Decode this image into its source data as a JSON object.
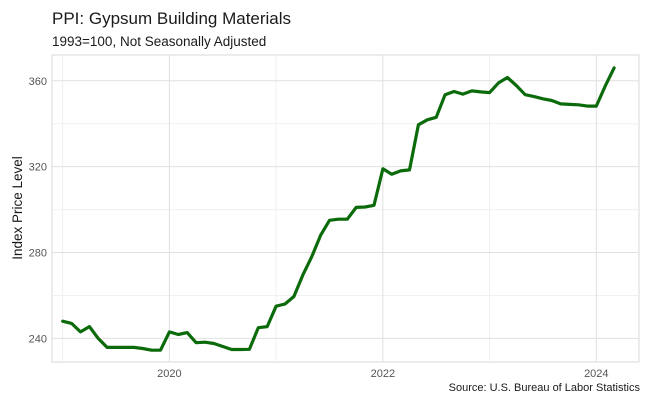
{
  "chart_data": {
    "type": "line",
    "title": "PPI: Gypsum Building Materials",
    "subtitle": "1993=100, Not Seasonally Adjusted",
    "caption": "Source: U.S. Bureau of Labor Statistics",
    "xlabel": "",
    "ylabel": "Index Price Level",
    "x_start": "2019-01",
    "x_frequency": "monthly",
    "xlim": [
      2018.9,
      2024.4
    ],
    "ylim": [
      229,
      372
    ],
    "x_ticks": [
      2020,
      2022,
      2024
    ],
    "x_tick_labels": [
      "2020",
      "2022",
      "2024"
    ],
    "y_ticks": [
      240,
      280,
      320,
      360
    ],
    "y_tick_labels": [
      "240",
      "280",
      "320",
      "360"
    ],
    "grid": true,
    "line_color": "#0b6b0b",
    "series": [
      {
        "name": "PPI Gypsum Building Materials",
        "values": [
          248,
          247,
          243,
          245.5,
          240,
          235.8,
          235.8,
          235.8,
          235.8,
          235.3,
          234.5,
          234.5,
          243,
          241.8,
          242.7,
          238,
          238.2,
          237.6,
          236.2,
          234.8,
          234.8,
          234.9,
          245,
          245.5,
          255,
          256,
          259.5,
          269.5,
          278,
          288,
          295,
          295.5,
          295.5,
          301,
          301.2,
          302,
          319,
          316.5,
          318,
          318.5,
          339.5,
          341.8,
          343,
          353.5,
          355,
          353.8,
          355.3,
          354.8,
          354.5,
          359,
          361.5,
          357.8,
          353.5,
          352.6,
          351.6,
          350.8,
          349.2,
          349,
          348.8,
          348.2,
          348.2,
          357.5,
          366
        ]
      }
    ]
  }
}
